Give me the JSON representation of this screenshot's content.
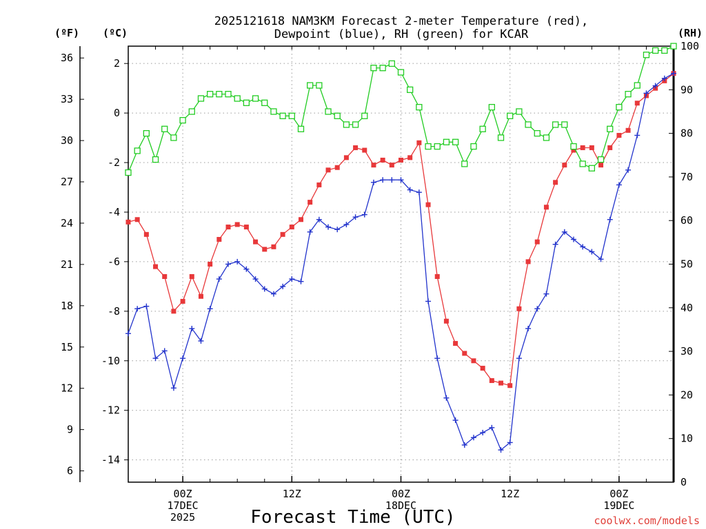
{
  "chart_data": {
    "type": "line",
    "title_line1": "2025121618 NAM3KM Forecast 2-meter Temperature (red),",
    "title_line2": "Dewpoint (blue), RH (green) for KCAR",
    "xlabel": "Forecast Time (UTC)",
    "credit": "coolwx.com/models",
    "units": {
      "fahrenheit": "(ºF)",
      "celsius": "(ºC)",
      "rh": "(RH)"
    },
    "x_unit": "forecast hour from 2025-12-16 18Z",
    "xlim": [
      0,
      60
    ],
    "x_ticks": [
      {
        "x": 6,
        "lines": [
          "00Z",
          "17DEC",
          "2025"
        ]
      },
      {
        "x": 18,
        "lines": [
          "12Z"
        ]
      },
      {
        "x": 30,
        "lines": [
          "00Z",
          "18DEC"
        ]
      },
      {
        "x": 42,
        "lines": [
          "12Z"
        ]
      },
      {
        "x": 54,
        "lines": [
          "00Z",
          "19DEC"
        ]
      }
    ],
    "y_celsius": {
      "range": [
        -14.9,
        2.7
      ],
      "ticks": [
        "2",
        "0",
        "-2",
        "-4",
        "-6",
        "-8",
        "-10",
        "-12",
        "-14"
      ]
    },
    "y_fahrenheit": {
      "ticks": [
        "36",
        "33",
        "30",
        "27",
        "24",
        "21",
        "18",
        "15",
        "12",
        "9",
        "6"
      ]
    },
    "y_rh": {
      "range": [
        0,
        100
      ],
      "ticks": [
        "100",
        "90",
        "80",
        "70",
        "60",
        "50",
        "40",
        "30",
        "20",
        "10",
        "0"
      ]
    },
    "x": [
      0,
      1,
      2,
      3,
      4,
      5,
      6,
      7,
      8,
      9,
      10,
      11,
      12,
      13,
      14,
      15,
      16,
      17,
      18,
      19,
      20,
      21,
      22,
      23,
      24,
      25,
      26,
      27,
      28,
      29,
      30,
      31,
      32,
      33,
      34,
      35,
      36,
      37,
      38,
      39,
      40,
      41,
      42,
      43,
      44,
      45,
      46,
      47,
      48,
      49,
      50,
      51,
      52,
      53,
      54,
      55,
      56,
      57,
      58,
      59,
      60
    ],
    "series": [
      {
        "name": "Temperature",
        "unit": "°C",
        "color": "#e8383a",
        "marker": "filled-square",
        "values": [
          -4.4,
          -4.3,
          -4.9,
          -6.2,
          -6.6,
          -8.0,
          -7.6,
          -6.6,
          -7.4,
          -6.1,
          -5.1,
          -4.6,
          -4.5,
          -4.6,
          -5.2,
          -5.5,
          -5.4,
          -4.9,
          -4.6,
          -4.3,
          -3.6,
          -2.9,
          -2.3,
          -2.2,
          -1.8,
          -1.4,
          -1.5,
          -2.1,
          -1.9,
          -2.1,
          -1.9,
          -1.8,
          -1.2,
          -3.7,
          -6.6,
          -8.4,
          -9.3,
          -9.7,
          -10.0,
          -10.3,
          -10.8,
          -10.9,
          -11.0,
          -7.9,
          -6.0,
          -5.2,
          -3.8,
          -2.8,
          -2.1,
          -1.5,
          -1.4,
          -1.4,
          -2.1,
          -1.4,
          -0.9,
          -0.7,
          0.4,
          0.7,
          1.0,
          1.3,
          1.6
        ]
      },
      {
        "name": "Dewpoint",
        "unit": "°C",
        "color": "#2233cc",
        "marker": "plus",
        "values": [
          -8.9,
          -7.9,
          -7.8,
          -9.9,
          -9.6,
          -11.1,
          -9.9,
          -8.7,
          -9.2,
          -7.9,
          -6.7,
          -6.1,
          -6.0,
          -6.3,
          -6.7,
          -7.1,
          -7.3,
          -7.0,
          -6.7,
          -6.8,
          -4.8,
          -4.3,
          -4.6,
          -4.7,
          -4.5,
          -4.2,
          -4.1,
          -2.8,
          -2.7,
          -2.7,
          -2.7,
          -3.1,
          -3.2,
          -7.6,
          -9.9,
          -11.5,
          -12.4,
          -13.4,
          -13.1,
          -12.9,
          -12.7,
          -13.6,
          -13.3,
          -9.9,
          -8.7,
          -7.9,
          -7.3,
          -5.3,
          -4.8,
          -5.1,
          -5.4,
          -5.6,
          -5.9,
          -4.3,
          -2.9,
          -2.3,
          -0.9,
          0.8,
          1.1,
          1.4,
          1.6
        ]
      },
      {
        "name": "RH",
        "unit": "%",
        "color": "#22cc22",
        "marker": "open-square",
        "values": [
          71,
          76,
          80,
          74,
          81,
          79,
          83,
          85,
          88,
          89,
          89,
          89,
          88,
          87,
          88,
          87,
          85,
          84,
          84,
          81,
          91,
          91,
          85,
          84,
          82,
          82,
          84,
          95,
          95,
          96,
          94,
          90,
          86,
          77,
          77,
          78,
          78,
          73,
          77,
          81,
          86,
          79,
          84,
          85,
          82,
          80,
          79,
          82,
          82,
          77,
          73,
          72,
          74,
          81,
          86,
          89,
          91,
          98,
          99,
          99,
          100
        ]
      }
    ]
  }
}
